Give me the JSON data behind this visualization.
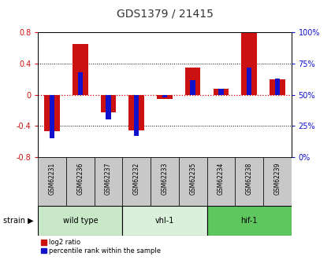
{
  "title": "GDS1379 / 21415",
  "samples": [
    "GSM62231",
    "GSM62236",
    "GSM62237",
    "GSM62232",
    "GSM62233",
    "GSM62235",
    "GSM62234",
    "GSM62238",
    "GSM62239"
  ],
  "log2_ratio": [
    -0.47,
    0.65,
    -0.22,
    -0.46,
    -0.05,
    0.35,
    0.08,
    0.79,
    0.2
  ],
  "percentile_rank": [
    15,
    68,
    30,
    17,
    48,
    62,
    55,
    72,
    63
  ],
  "groups": [
    {
      "label": "wild type",
      "start": 0,
      "end": 3,
      "color": "#c8e8c8"
    },
    {
      "label": "vhl-1",
      "start": 3,
      "end": 6,
      "color": "#daf0da"
    },
    {
      "label": "hif-1",
      "start": 6,
      "end": 9,
      "color": "#5ec85e"
    }
  ],
  "ylim": [
    -0.8,
    0.8
  ],
  "red_color": "#cc1111",
  "blue_color": "#1111cc",
  "bg_color": "#c8c8c8",
  "zero_line_color": "#dd0000",
  "red_bar_width": 0.55,
  "blue_bar_width": 0.18
}
